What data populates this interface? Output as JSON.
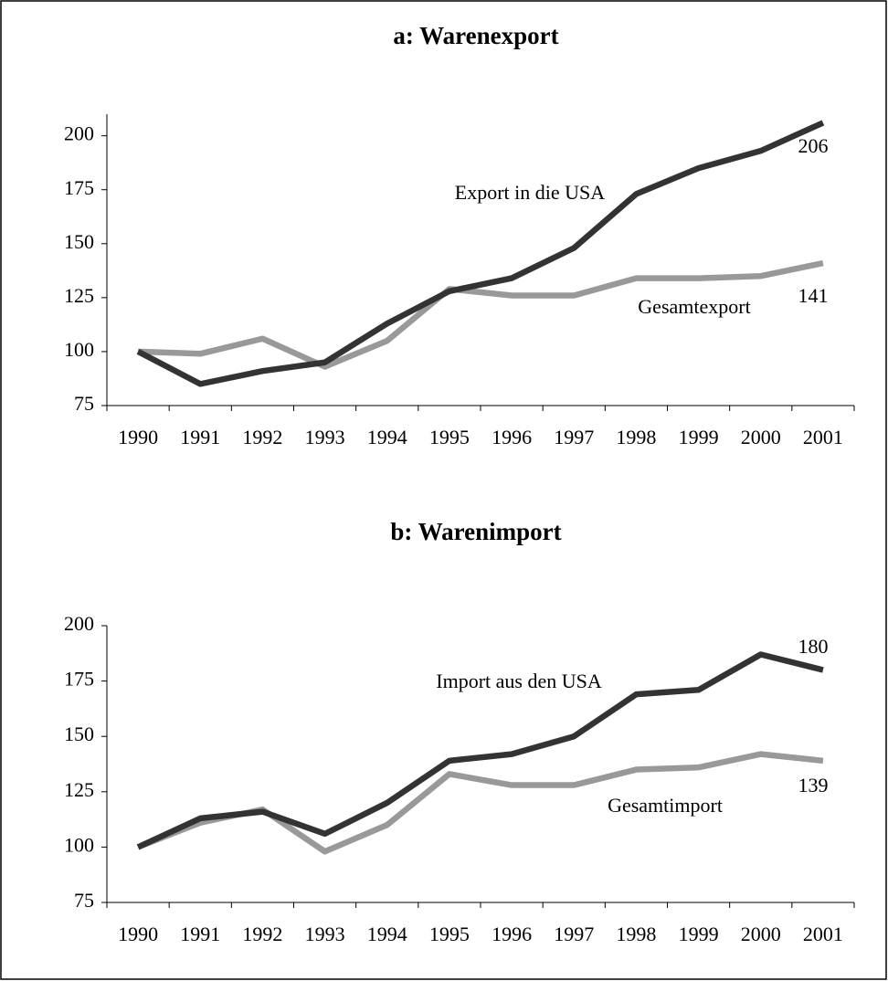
{
  "chart_data": [
    {
      "type": "line",
      "title": "a: Warenexport",
      "categories": [
        "1990",
        "1991",
        "1992",
        "1993",
        "1994",
        "1995",
        "1996",
        "1997",
        "1998",
        "1999",
        "2000",
        "2001"
      ],
      "series": [
        {
          "name": "Export in die USA",
          "color": "#333333",
          "values": [
            100,
            85,
            91,
            95,
            113,
            128,
            134,
            148,
            173,
            185,
            193,
            206
          ]
        },
        {
          "name": "Gesamtexport",
          "color": "#999999",
          "values": [
            100,
            99,
            106,
            93,
            105,
            129,
            126,
            126,
            134,
            134,
            135,
            141
          ]
        }
      ],
      "ylim": [
        75,
        210
      ],
      "yticks": [
        75,
        100,
        125,
        150,
        175,
        200
      ]
    },
    {
      "type": "line",
      "title": "b: Warenimport",
      "categories": [
        "1990",
        "1991",
        "1992",
        "1993",
        "1994",
        "1995",
        "1996",
        "1997",
        "1998",
        "1999",
        "2000",
        "2001"
      ],
      "series": [
        {
          "name": "Import aus den USA",
          "color": "#333333",
          "values": [
            100,
            113,
            116,
            106,
            120,
            139,
            142,
            150,
            169,
            171,
            187,
            180
          ]
        },
        {
          "name": "Gesamtimport",
          "color": "#999999",
          "values": [
            100,
            111,
            117,
            98,
            110,
            133,
            128,
            128,
            135,
            136,
            142,
            139
          ]
        }
      ],
      "ylim": [
        75,
        200
      ],
      "yticks": [
        75,
        100,
        125,
        150,
        175,
        200
      ]
    }
  ]
}
